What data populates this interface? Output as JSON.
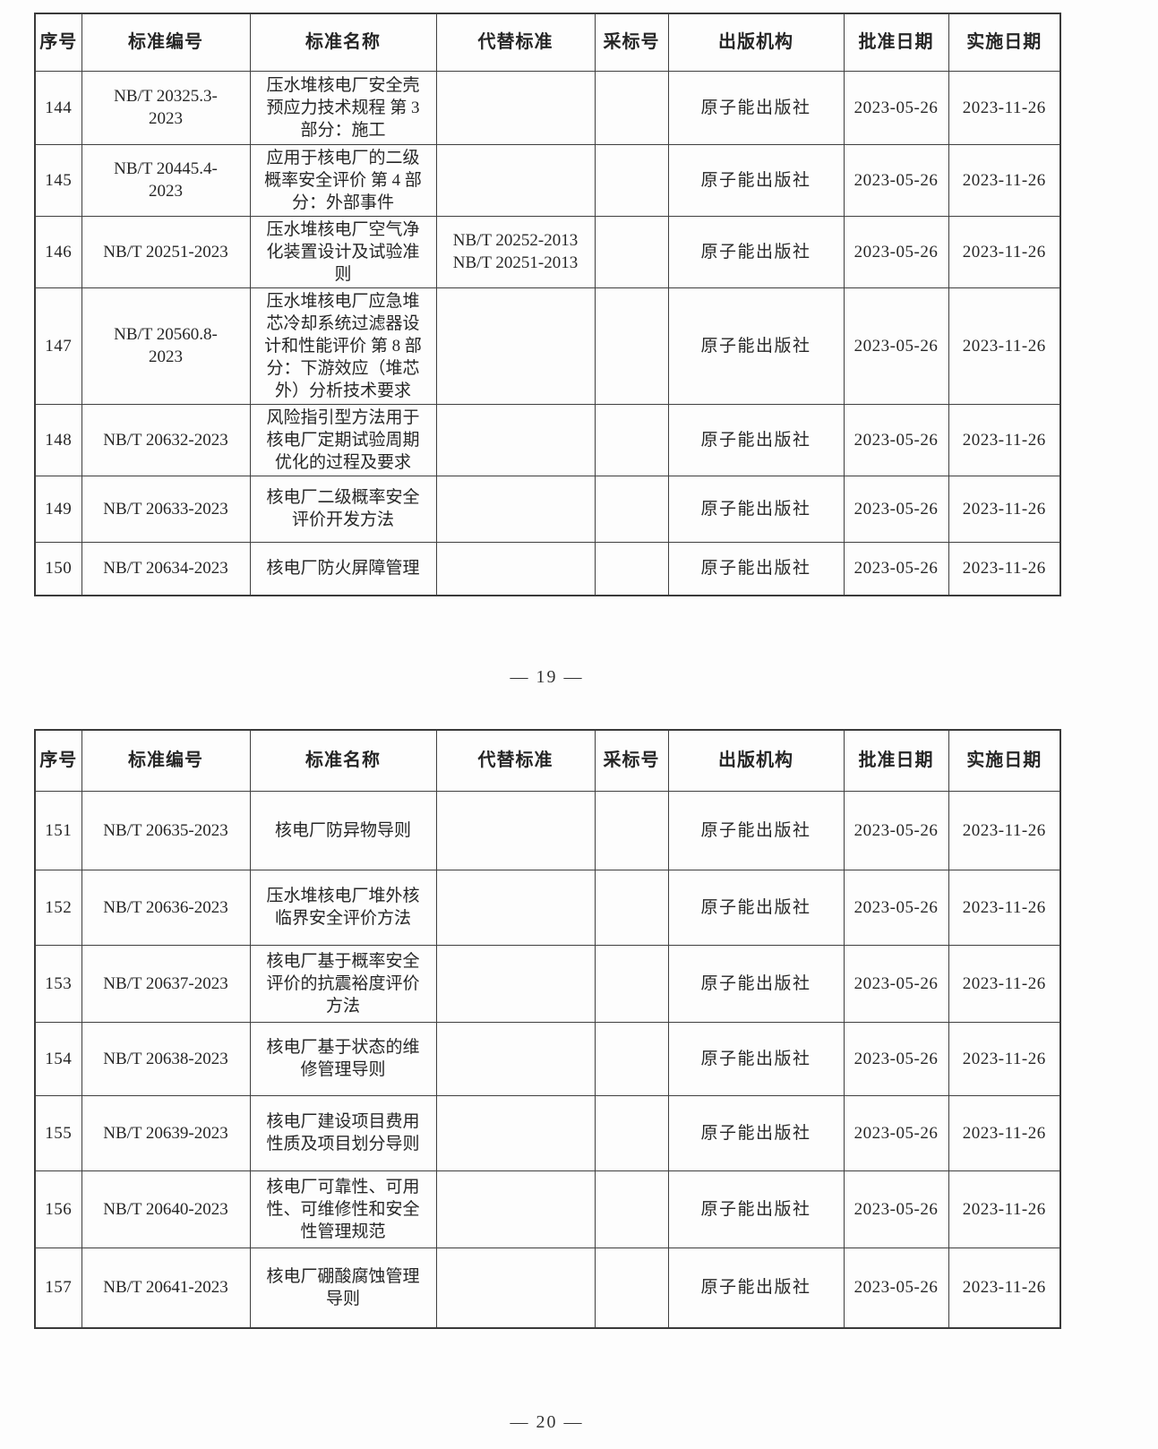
{
  "document": {
    "columns": [
      "序号",
      "标准编号",
      "标准名称",
      "代替标准",
      "采标号",
      "出版机构",
      "批准日期",
      "实施日期"
    ],
    "pages": [
      {
        "page_label": "— 19 —",
        "rows": [
          {
            "seq": "144",
            "code": "NB/T 20325.3-\n2023",
            "name": "压水堆核电厂安全壳\n预应力技术规程 第 3\n部分：施工",
            "replaced": "",
            "adopted": "",
            "publisher": "原子能出版社",
            "approval_date": "2023-05-26",
            "impl_date": "2023-11-26"
          },
          {
            "seq": "145",
            "code": "NB/T 20445.4-\n2023",
            "name": "应用于核电厂的二级\n概率安全评价 第 4 部\n分：外部事件",
            "replaced": "",
            "adopted": "",
            "publisher": "原子能出版社",
            "approval_date": "2023-05-26",
            "impl_date": "2023-11-26"
          },
          {
            "seq": "146",
            "code": "NB/T 20251-2023",
            "name": "压水堆核电厂空气净\n化装置设计及试验准\n则",
            "replaced": "NB/T 20252-2013\nNB/T 20251-2013",
            "adopted": "",
            "publisher": "原子能出版社",
            "approval_date": "2023-05-26",
            "impl_date": "2023-11-26"
          },
          {
            "seq": "147",
            "code": "NB/T 20560.8-\n2023",
            "name": "压水堆核电厂应急堆\n芯冷却系统过滤器设\n计和性能评价 第 8 部\n分：下游效应（堆芯\n外）分析技术要求",
            "replaced": "",
            "adopted": "",
            "publisher": "原子能出版社",
            "approval_date": "2023-05-26",
            "impl_date": "2023-11-26"
          },
          {
            "seq": "148",
            "code": "NB/T 20632-2023",
            "name": "风险指引型方法用于\n核电厂定期试验周期\n优化的过程及要求",
            "replaced": "",
            "adopted": "",
            "publisher": "原子能出版社",
            "approval_date": "2023-05-26",
            "impl_date": "2023-11-26"
          },
          {
            "seq": "149",
            "code": "NB/T 20633-2023",
            "name": "核电厂二级概率安全\n评价开发方法",
            "replaced": "",
            "adopted": "",
            "publisher": "原子能出版社",
            "approval_date": "2023-05-26",
            "impl_date": "2023-11-26"
          },
          {
            "seq": "150",
            "code": "NB/T 20634-2023",
            "name": "核电厂防火屏障管理",
            "replaced": "",
            "adopted": "",
            "publisher": "原子能出版社",
            "approval_date": "2023-05-26",
            "impl_date": "2023-11-26"
          }
        ]
      },
      {
        "page_label": "— 20 —",
        "rows": [
          {
            "seq": "151",
            "code": "NB/T 20635-2023",
            "name": "核电厂防异物导则",
            "replaced": "",
            "adopted": "",
            "publisher": "原子能出版社",
            "approval_date": "2023-05-26",
            "impl_date": "2023-11-26"
          },
          {
            "seq": "152",
            "code": "NB/T 20636-2023",
            "name": "压水堆核电厂堆外核\n临界安全评价方法",
            "replaced": "",
            "adopted": "",
            "publisher": "原子能出版社",
            "approval_date": "2023-05-26",
            "impl_date": "2023-11-26"
          },
          {
            "seq": "153",
            "code": "NB/T 20637-2023",
            "name": "核电厂基于概率安全\n评价的抗震裕度评价\n方法",
            "replaced": "",
            "adopted": "",
            "publisher": "原子能出版社",
            "approval_date": "2023-05-26",
            "impl_date": "2023-11-26"
          },
          {
            "seq": "154",
            "code": "NB/T 20638-2023",
            "name": "核电厂基于状态的维\n修管理导则",
            "replaced": "",
            "adopted": "",
            "publisher": "原子能出版社",
            "approval_date": "2023-05-26",
            "impl_date": "2023-11-26"
          },
          {
            "seq": "155",
            "code": "NB/T 20639-2023",
            "name": "核电厂建设项目费用\n性质及项目划分导则",
            "replaced": "",
            "adopted": "",
            "publisher": "原子能出版社",
            "approval_date": "2023-05-26",
            "impl_date": "2023-11-26"
          },
          {
            "seq": "156",
            "code": "NB/T 20640-2023",
            "name": "核电厂可靠性、可用\n性、可维修性和安全\n性管理规范",
            "replaced": "",
            "adopted": "",
            "publisher": "原子能出版社",
            "approval_date": "2023-05-26",
            "impl_date": "2023-11-26"
          },
          {
            "seq": "157",
            "code": "NB/T 20641-2023",
            "name": "核电厂硼酸腐蚀管理\n导则",
            "replaced": "",
            "adopted": "",
            "publisher": "原子能出版社",
            "approval_date": "2023-05-26",
            "impl_date": "2023-11-26"
          }
        ]
      }
    ]
  }
}
